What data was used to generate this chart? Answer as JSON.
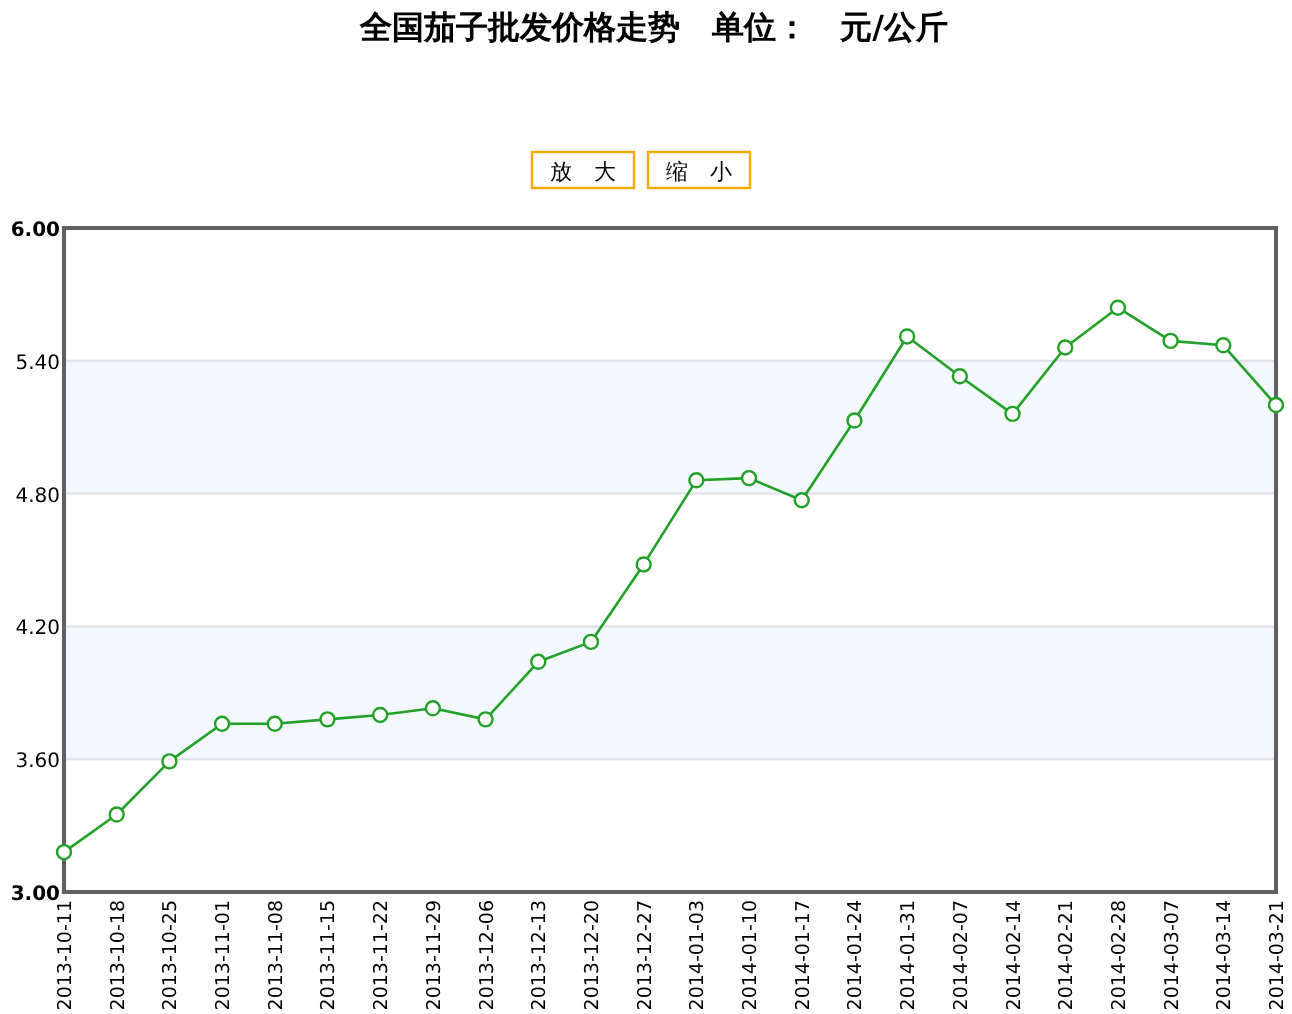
{
  "chart_data": {
    "type": "line",
    "title": "全国茄子批发价格走势　单位：　元/公斤",
    "categories": [
      "2013-10-11",
      "2013-10-18",
      "2013-10-25",
      "2013-11-01",
      "2013-11-08",
      "2013-11-15",
      "2013-11-22",
      "2013-11-29",
      "2013-12-06",
      "2013-12-13",
      "2013-12-20",
      "2013-12-27",
      "2014-01-03",
      "2014-01-10",
      "2014-01-17",
      "2014-01-24",
      "2014-01-31",
      "2014-02-07",
      "2014-02-14",
      "2014-02-21",
      "2014-02-28",
      "2014-03-07",
      "2014-03-14",
      "2014-03-21"
    ],
    "series": [
      {
        "color": "#22a02a",
        "values": [
          3.18,
          3.35,
          3.59,
          3.76,
          3.76,
          3.78,
          3.8,
          3.83,
          3.78,
          4.04,
          4.13,
          4.48,
          4.86,
          4.87,
          4.77,
          5.13,
          5.51,
          5.33,
          5.16,
          5.46,
          5.64,
          5.49,
          5.47,
          5.2
        ]
      }
    ],
    "ylim": [
      3.0,
      6.0
    ],
    "yticks": [
      {
        "value": 3.0,
        "label": "3.00"
      },
      {
        "value": 3.6,
        "label": "3.60"
      },
      {
        "value": 4.2,
        "label": "4.20"
      },
      {
        "value": 4.8,
        "label": "4.80"
      },
      {
        "value": 5.4,
        "label": "5.40"
      },
      {
        "value": 6.0,
        "label": "6.00"
      }
    ],
    "bands": [
      {
        "axis": "y",
        "from": 3.6,
        "to": 4.2,
        "color": "#f3f8fe"
      },
      {
        "axis": "y",
        "from": 4.8,
        "to": 5.4,
        "color": "#f3f8fe"
      }
    ],
    "annotations": [
      "放　大",
      "缩　小"
    ],
    "grid": "y",
    "marker": "circle",
    "line_style": "solid"
  }
}
